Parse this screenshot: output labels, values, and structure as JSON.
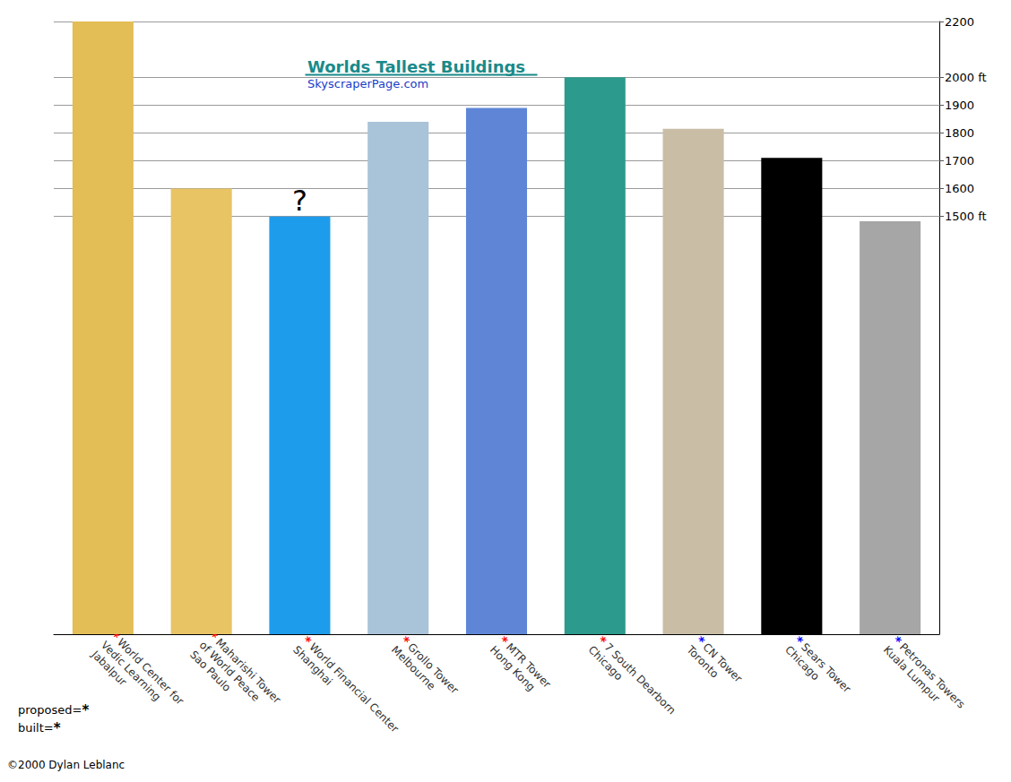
{
  "chart_data": {
    "type": "bar",
    "title": "Worlds Tallest Buildings",
    "subtitle": "SkyscraperPage.com",
    "categories": [
      "World Center for\nVedic Learning\nJabalpur",
      "Maharishi Tower\nof World Peace\nSao Paulo",
      "World Financial Center\nShanghai",
      "Grollo Tower\nMelbourne",
      "MTR Tower\nHong Kong",
      "7 South Dearborn\nChicago",
      "CN Tower\nToronto",
      "Sears Tower\nChicago",
      "Petronas Towers\nKuala Lumpur"
    ],
    "colors": [
      "#e3bd55",
      "#e8c465",
      "#1e9cec",
      "#a9c3d8",
      "#5f86d6",
      "#2c9a8c",
      "#c9bda6",
      "#000000",
      "#a6a6a6"
    ],
    "series": [
      {
        "name": "proposed=",
        "color": "#ff0000",
        "values": [
          2200,
          1600,
          1500,
          1840,
          1890,
          2000,
          null,
          null,
          null
        ]
      },
      {
        "name": "built=",
        "color": "#0000ff",
        "values": [
          null,
          null,
          null,
          null,
          null,
          null,
          1815,
          1710,
          1483
        ]
      }
    ],
    "legend_symbol": "*",
    "stacked": true,
    "ylim": [
      0,
      2200
    ],
    "yticks": [
      {
        "value": 1500,
        "label": "1500 ft"
      },
      1600,
      1700,
      1800,
      1900,
      {
        "value": 2000,
        "label": "2000 ft"
      },
      2200
    ],
    "grid": true,
    "annotations": [
      {
        "text": "?",
        "category": "World Financial Center\nShanghai"
      }
    ],
    "credit": "©2000 Dylan Leblanc"
  }
}
